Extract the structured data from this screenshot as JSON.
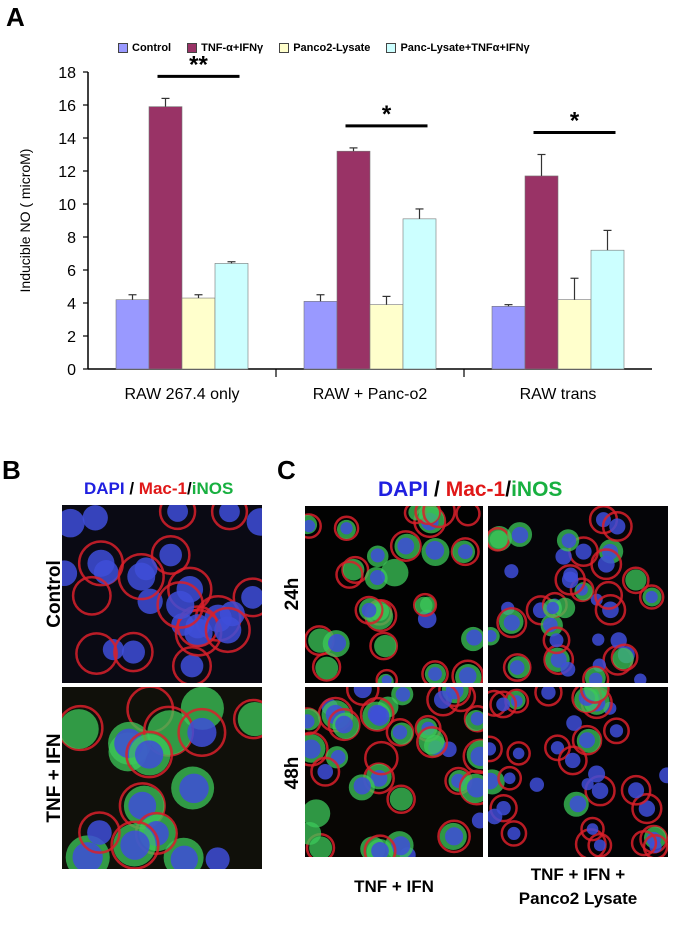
{
  "panel_letters": {
    "a": "A",
    "b": "B",
    "c": "C"
  },
  "legend": [
    {
      "label": "Control",
      "color": "#9999ff"
    },
    {
      "label": "TNF-α+IFNγ",
      "color": "#993366"
    },
    {
      "label": "Panco2-Lysate",
      "color": "#ffffcc"
    },
    {
      "label": "Panc-Lysate+TNFα+IFNγ",
      "color": "#ccffff"
    }
  ],
  "chart_data": {
    "type": "bar",
    "title": "",
    "xlabel": "",
    "ylabel": "Inducible NO ( microM)",
    "ylim": [
      0,
      18
    ],
    "yticks": [
      0,
      2,
      4,
      6,
      8,
      10,
      12,
      14,
      16,
      18
    ],
    "categories": [
      "RAW 267.4 only",
      "RAW + Panc-o2",
      "RAW trans"
    ],
    "series": [
      {
        "name": "Control",
        "values": [
          4.2,
          4.1,
          3.8
        ],
        "errors": [
          0.3,
          0.4,
          0.1
        ],
        "color": "#9999ff"
      },
      {
        "name": "TNF-α+IFNγ",
        "values": [
          15.9,
          13.2,
          11.7
        ],
        "errors": [
          0.5,
          0.2,
          1.3
        ],
        "color": "#993366"
      },
      {
        "name": "Panco2-Lysate",
        "values": [
          4.3,
          3.9,
          4.2
        ],
        "errors": [
          0.2,
          0.5,
          1.3
        ],
        "color": "#ffffcc"
      },
      {
        "name": "Panc-Lysate+TNFα+IFNγ",
        "values": [
          6.4,
          9.1,
          7.2
        ],
        "errors": [
          0.1,
          0.6,
          1.2
        ],
        "color": "#ccffff"
      }
    ],
    "significance": [
      {
        "category": "RAW 267.4 only",
        "label": "**"
      },
      {
        "category": "RAW + Panc-o2",
        "label": "*"
      },
      {
        "category": "RAW trans",
        "label": "*"
      }
    ],
    "grid": false,
    "legend_position": "top"
  },
  "panel_b": {
    "stain": {
      "dapi": "DAPI",
      "sep1": " / ",
      "mac1": "Mac-1",
      "sep2": "/",
      "inos": "iNOS"
    },
    "rows": [
      "Control",
      "TNF + IFN"
    ]
  },
  "panel_c": {
    "stain": {
      "dapi": "DAPI",
      "sep1": " / ",
      "mac1": "Mac-1",
      "sep2": "/",
      "inos": "iNOS"
    },
    "rows": [
      "24h",
      "48h"
    ],
    "columns": [
      "TNF + IFN",
      "TNF + IFN +\nPanco2 Lysate"
    ]
  }
}
